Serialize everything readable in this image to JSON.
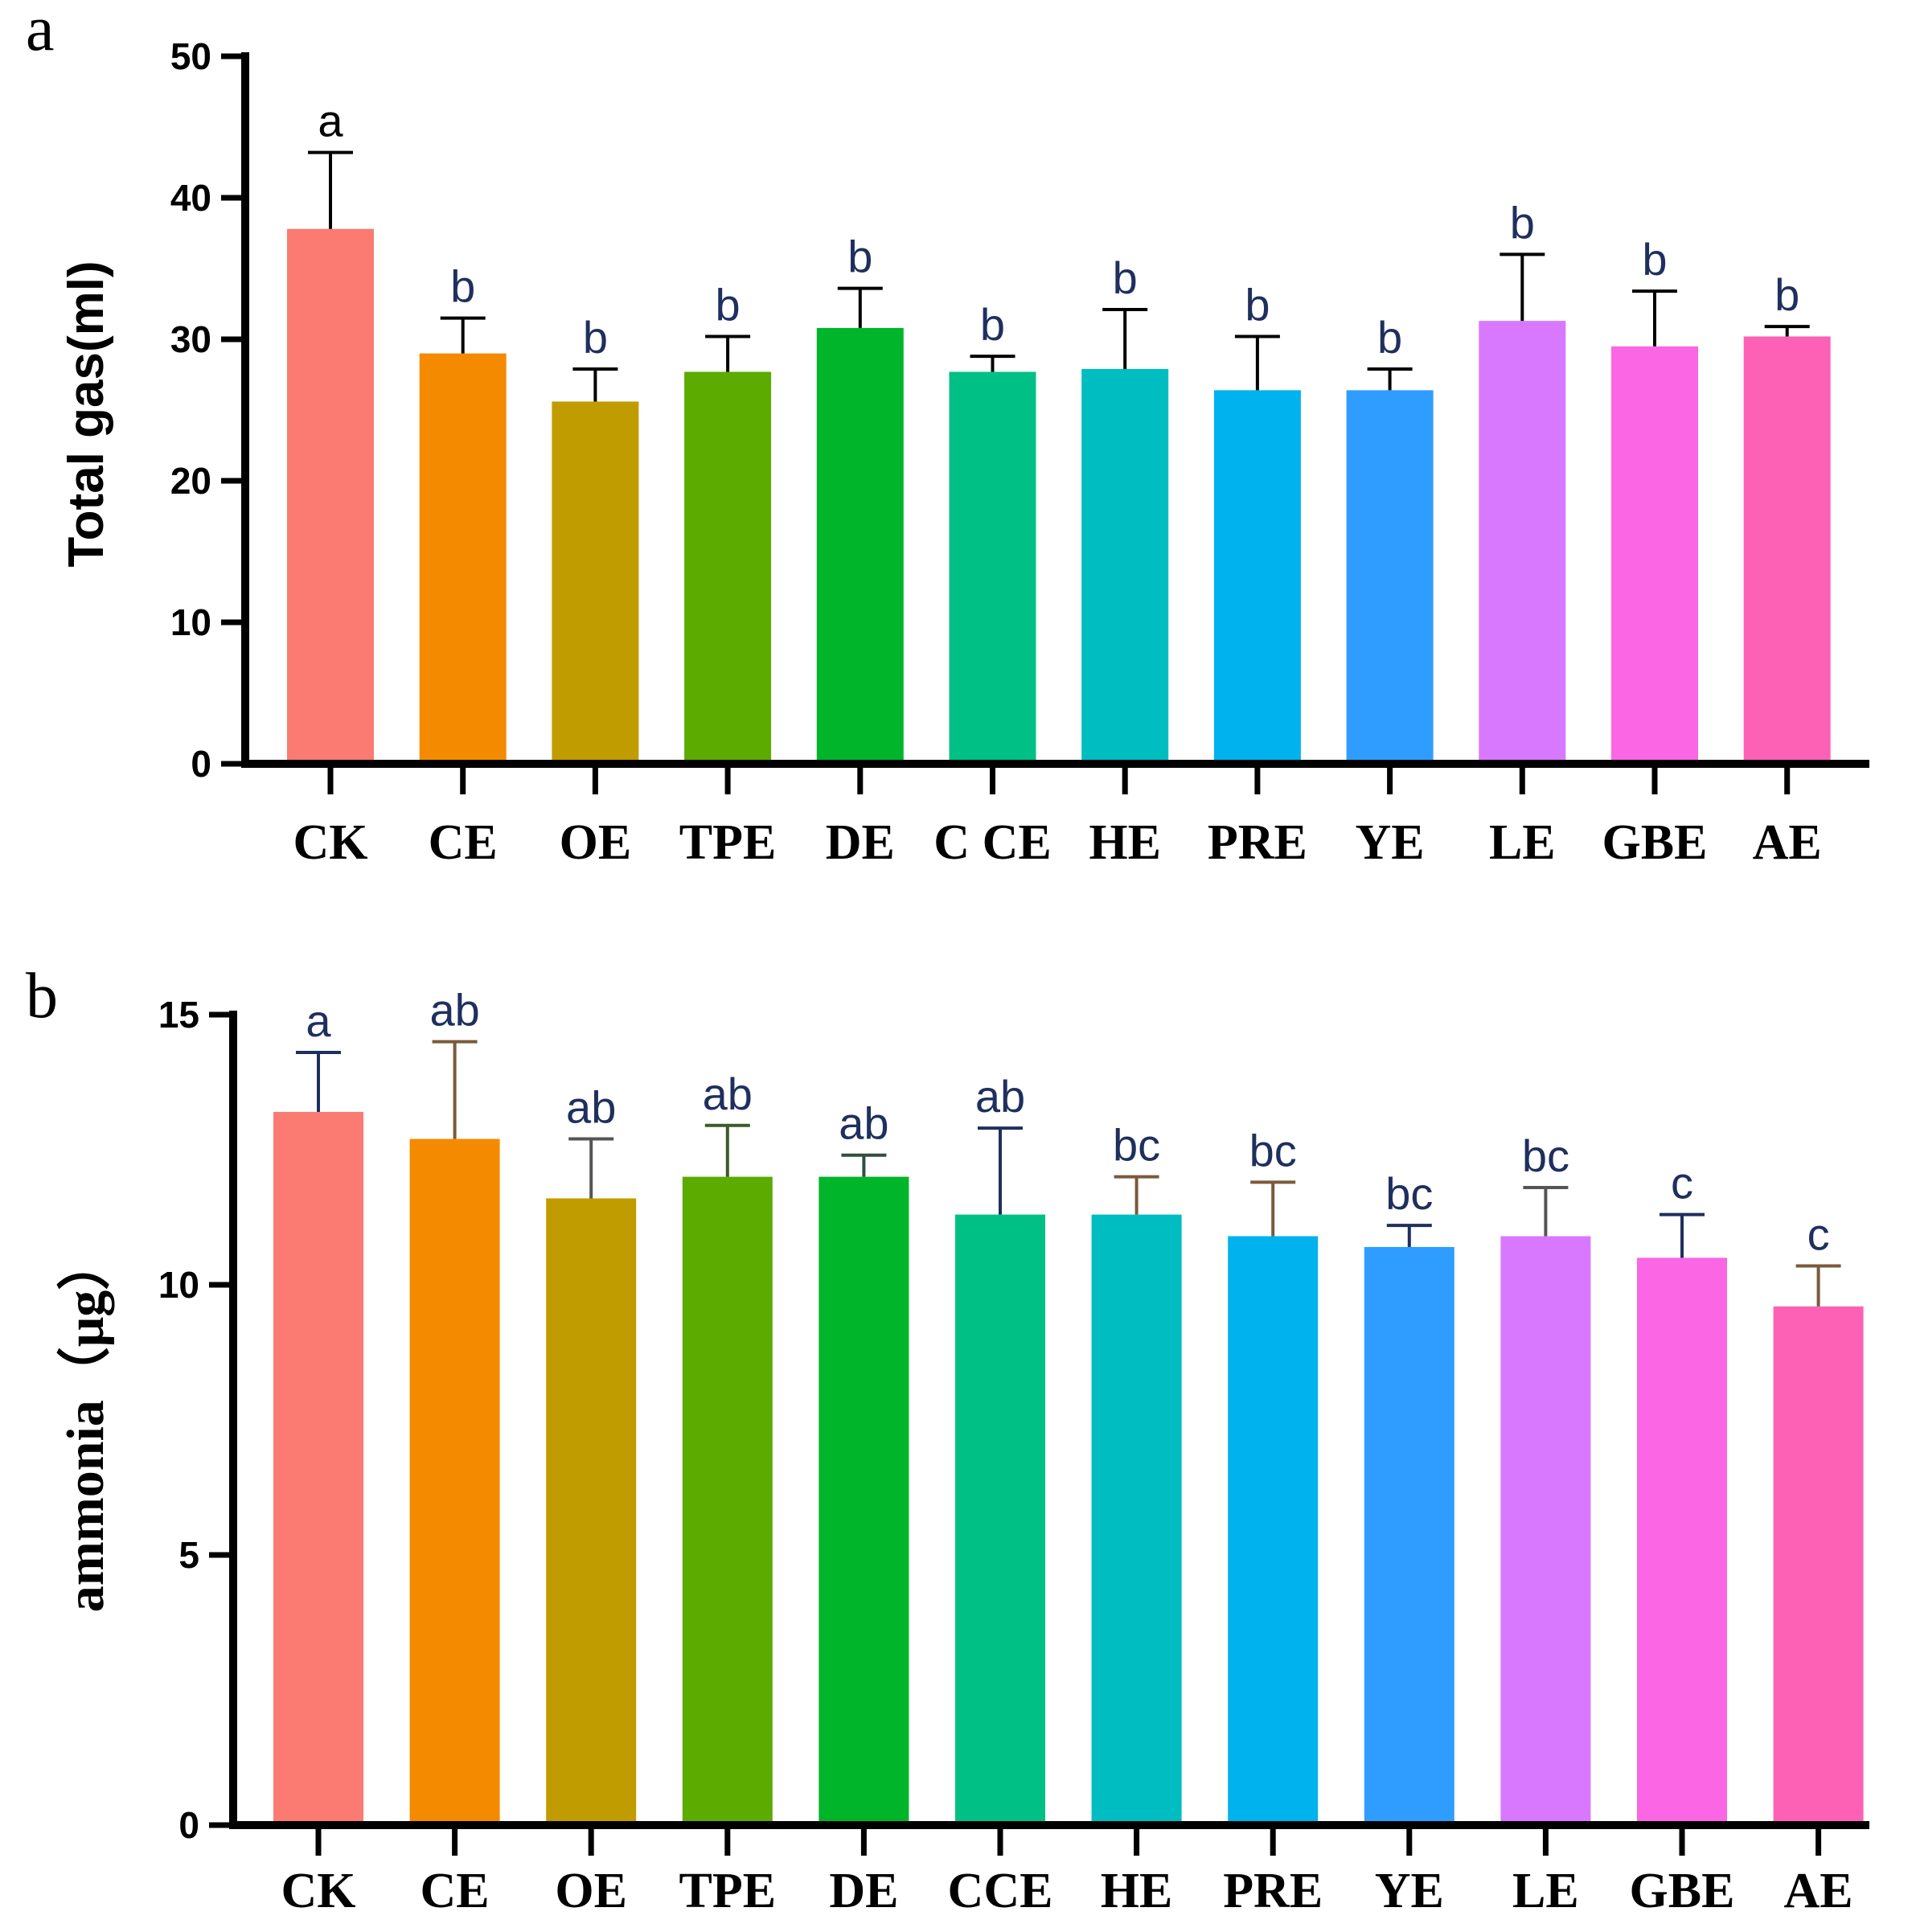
{
  "chart_data": [
    {
      "panel": "a",
      "type": "bar",
      "title": "",
      "xlabel": "",
      "ylabel": "Total gas(ml)",
      "ylim": [
        0,
        50
      ],
      "yticks": [
        "0",
        "10",
        "20",
        "30",
        "40",
        "50"
      ],
      "categories": [
        "CK",
        "CE",
        "OE",
        "TPE",
        "DE",
        "CCE",
        "HE",
        "PRE",
        "YE",
        "LE",
        "GBE",
        "AE"
      ],
      "tick_labels": [
        "CK",
        "CE",
        "OE",
        "TPE",
        "DE",
        "C CE",
        "HE",
        "PRE",
        "YE",
        "LE",
        "GBE",
        "AE"
      ],
      "values": [
        37.8,
        29.0,
        25.6,
        27.7,
        30.8,
        27.7,
        27.9,
        26.4,
        26.4,
        31.3,
        29.5,
        30.2
      ],
      "errors": [
        5.4,
        2.5,
        2.3,
        2.5,
        2.8,
        1.1,
        4.2,
        3.8,
        1.5,
        4.7,
        3.9,
        0.7
      ],
      "letters": [
        "a",
        "b",
        "b",
        "b",
        "b",
        "b",
        "b",
        "b",
        "b",
        "b",
        "b",
        "b"
      ],
      "colors": [
        "#fb7a72",
        "#f48a00",
        "#c19c00",
        "#5bab00",
        "#00b52a",
        "#00c086",
        "#00bdc1",
        "#00b2ed",
        "#2f9dff",
        "#d878ff",
        "#fa66e3",
        "#fd61b5"
      ],
      "error_colors": [
        "#000000",
        "#000000",
        "#000000",
        "#000000",
        "#000000",
        "#000000",
        "#000000",
        "#000000",
        "#000000",
        "#000000",
        "#000000",
        "#000000"
      ],
      "letter_colors": [
        "#000000",
        "#1f2f5e",
        "#1f2f5e",
        "#1f2f5e",
        "#1f2f5e",
        "#1f2f5e",
        "#1f2f5e",
        "#1f2f5e",
        "#1f2f5e",
        "#1f2f5e",
        "#1f2f5e",
        "#1f2f5e"
      ]
    },
    {
      "panel": "b",
      "type": "bar",
      "title": "",
      "xlabel": "",
      "ylabel": "ammonia（μg）",
      "ylim": [
        0,
        15
      ],
      "yticks": [
        "0",
        "5",
        "10",
        "15"
      ],
      "categories": [
        "CK",
        "CE",
        "OE",
        "TPE",
        "DE",
        "CCE",
        "HE",
        "PRE",
        "YE",
        "LE",
        "GBE",
        "AE"
      ],
      "tick_labels": [
        "CK",
        "CE",
        "OE",
        "TPE",
        "DE",
        "CCE",
        "HE",
        "PRE",
        "YE",
        "LE",
        "GBE",
        "AE"
      ],
      "values": [
        13.2,
        12.7,
        11.6,
        12.0,
        12.0,
        11.3,
        11.3,
        10.9,
        10.7,
        10.9,
        10.5,
        9.6
      ],
      "errors": [
        1.1,
        1.8,
        1.1,
        0.95,
        0.4,
        1.6,
        0.7,
        1.0,
        0.4,
        0.9,
        0.8,
        0.75
      ],
      "letters": [
        "a",
        "ab",
        "ab",
        "ab",
        "ab",
        "ab",
        "bc",
        "bc",
        "bc",
        "bc",
        "c",
        "c"
      ],
      "colors": [
        "#fb7a72",
        "#f48a00",
        "#c19c00",
        "#5bab00",
        "#00b52a",
        "#00c086",
        "#00bdc1",
        "#00b2ed",
        "#2f9dff",
        "#d878ff",
        "#fa66e3",
        "#fd61b5"
      ],
      "error_colors": [
        "#1f2f5e",
        "#7b5a3a",
        "#555555",
        "#3d5a2a",
        "#2f4f3f",
        "#1f2f5e",
        "#7b5a3a",
        "#7b5a3a",
        "#1f2f5e",
        "#555555",
        "#1f2f5e",
        "#7b5a3a"
      ],
      "letter_colors": [
        "#1f2f5e",
        "#1f2f5e",
        "#1f2f5e",
        "#1f2f5e",
        "#1f2f5e",
        "#1f2f5e",
        "#1f2f5e",
        "#1f2f5e",
        "#1f2f5e",
        "#1f2f5e",
        "#1f2f5e",
        "#1f2f5e"
      ]
    }
  ]
}
